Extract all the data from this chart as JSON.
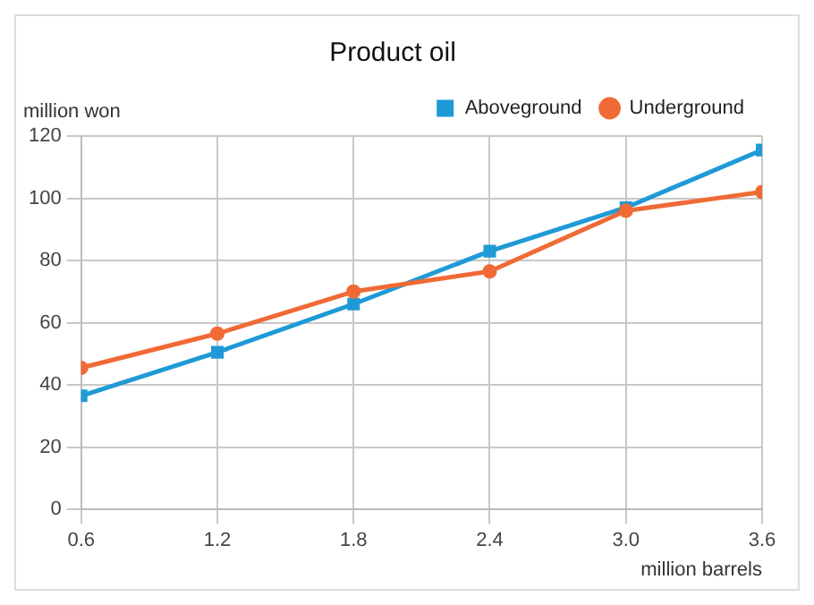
{
  "chart_data": {
    "type": "line",
    "title": "Product oil",
    "xlabel": "million barrels",
    "ylabel": "million won",
    "x": [
      0.6,
      1.2,
      1.8,
      2.4,
      3.0,
      3.6
    ],
    "series": [
      {
        "name": "Aboveground",
        "color": "#1f9ad6",
        "marker": "square",
        "values": [
          36.5,
          50.5,
          66,
          83,
          97,
          115.5
        ]
      },
      {
        "name": "Underground",
        "color": "#f06a35",
        "marker": "circle",
        "values": [
          45.5,
          56.5,
          70,
          76.5,
          96,
          102
        ]
      }
    ],
    "xlim": [
      0.6,
      3.6
    ],
    "xticks": [
      {
        "value": 0.6,
        "label": "0.6"
      },
      {
        "value": 1.2,
        "label": "1.2"
      },
      {
        "value": 1.8,
        "label": "1.8"
      },
      {
        "value": 2.4,
        "label": "2.4"
      },
      {
        "value": 3.0,
        "label": "3.0"
      },
      {
        "value": 3.6,
        "label": "3.6"
      }
    ],
    "ylim": [
      0,
      120
    ],
    "yticks": [
      0,
      20,
      40,
      60,
      80,
      100,
      120
    ],
    "grid": true,
    "legend": "top right",
    "line_style": "solid"
  }
}
